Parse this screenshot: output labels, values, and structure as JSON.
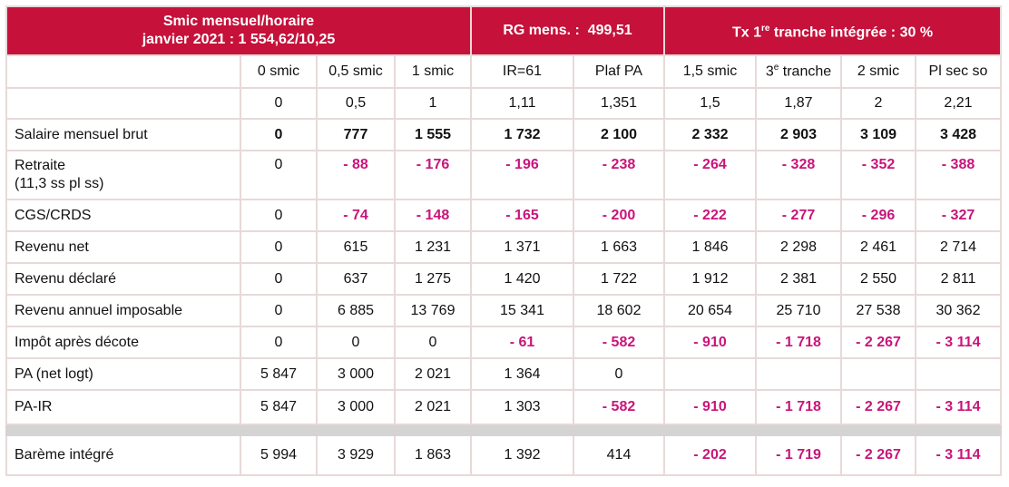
{
  "header": {
    "smic_line1": "Smic mensuel/horaire",
    "smic_line2": "janvier 2021 : 1 554,62/10,25",
    "rg": "RG mens. :  499,51",
    "tx_prefix": "Tx 1",
    "tx_sup": "re",
    "tx_suffix": " tranche intégrée : 30 %"
  },
  "columns": [
    "0 smic",
    "0,5 smic",
    "1 smic",
    "IR=61",
    "Plaf PA",
    "1,5 smic",
    "3",
    "2 smic",
    "Pl sec so"
  ],
  "column_3e_sup": "e",
  "column_3e_suffix": " tranche",
  "ratios": [
    "0",
    "0,5",
    "1",
    "1,11",
    "1,351",
    "1,5",
    "1,87",
    "2",
    "2,21"
  ],
  "rows": {
    "salaire": {
      "label": "Salaire mensuel brut",
      "values": [
        "0",
        "777",
        "1 555",
        "1 732",
        "2 100",
        "2 332",
        "2 903",
        "3 109",
        "3 428"
      ]
    },
    "retraite": {
      "label": "Retraite",
      "label2": "(11,3 ss pl ss)",
      "values": [
        "0",
        "- 88",
        "- 176",
        "- 196",
        "- 238",
        "- 264",
        "- 328",
        "- 352",
        "- 388"
      ]
    },
    "csg": {
      "label": "CGS/CRDS",
      "values": [
        "0",
        "- 74",
        "- 148",
        "- 165",
        "- 200",
        "- 222",
        "- 277",
        "- 296",
        "- 327"
      ]
    },
    "revenu_net": {
      "label": "Revenu net",
      "values": [
        "0",
        "615",
        "1 231",
        "1 371",
        "1 663",
        "1 846",
        "2 298",
        "2 461",
        "2 714"
      ]
    },
    "revenu_declare": {
      "label": "Revenu déclaré",
      "values": [
        "0",
        "637",
        "1 275",
        "1 420",
        "1 722",
        "1 912",
        "2 381",
        "2 550",
        "2 811"
      ]
    },
    "revenu_annuel": {
      "label": "Revenu annuel imposable",
      "values": [
        "0",
        "6 885",
        "13 769",
        "15 341",
        "18 602",
        "20 654",
        "25 710",
        "27 538",
        "30 362"
      ]
    },
    "impot": {
      "label": "Impôt après décote",
      "values": [
        "0",
        "0",
        "0",
        "- 61",
        "- 582",
        "- 910",
        "- 1 718",
        "- 2 267",
        "- 3 114"
      ]
    },
    "pa": {
      "label": "PA (net logt)",
      "values": [
        "5 847",
        "3 000",
        "2 021",
        "1 364",
        "0",
        "",
        "",
        "",
        ""
      ]
    },
    "pa_ir": {
      "label": "PA-IR",
      "values": [
        "5 847",
        "3 000",
        "2 021",
        "1 303",
        "- 582",
        "- 910",
        "- 1 718",
        "- 2 267",
        "- 3 114"
      ]
    },
    "bareme": {
      "label": "Barème intégré",
      "values": [
        "5 994",
        "3 929",
        "1 863",
        "1 392",
        "414",
        "- 202",
        "- 1 719",
        "- 2 267",
        "- 3 114"
      ]
    }
  },
  "colors": {
    "header_bg": "#c6113a",
    "negative": "#c8157a",
    "separator": "#d4d4d4"
  }
}
